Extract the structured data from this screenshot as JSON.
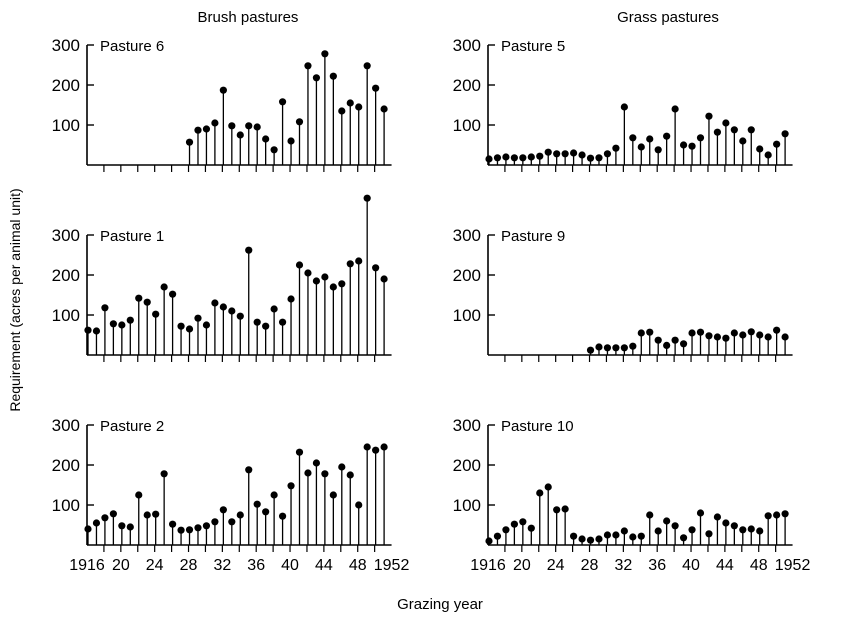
{
  "figure": {
    "col_titles": [
      "Brush pastures",
      "Grass pastures"
    ],
    "ylabel": "Requirement (acres per animal unit)",
    "xlabel": "Grazing year",
    "x_tick_labels": [
      "1916",
      "20",
      "24",
      "28",
      "32",
      "36",
      "40",
      "44",
      "48",
      "1952"
    ]
  },
  "chart_data": [
    {
      "type": "stem",
      "title": "Pasture 6",
      "group": "Brush pastures",
      "yticks": [
        100,
        200,
        300
      ],
      "ylim": [
        0,
        320
      ],
      "x": [
        1928,
        1929,
        1930,
        1931,
        1932,
        1933,
        1934,
        1935,
        1936,
        1937,
        1938,
        1939,
        1940,
        1941,
        1942,
        1943,
        1944,
        1945,
        1946,
        1947,
        1948,
        1949,
        1950,
        1951
      ],
      "values": [
        57,
        87,
        90,
        105,
        187,
        98,
        75,
        98,
        95,
        65,
        38,
        158,
        60,
        108,
        248,
        218,
        278,
        222,
        135,
        155,
        145,
        248,
        192,
        140
      ]
    },
    {
      "type": "stem",
      "title": "Pasture 1",
      "group": "Brush pastures",
      "yticks": [
        100,
        200,
        300
      ],
      "ylim": [
        0,
        400
      ],
      "x": [
        1916,
        1917,
        1918,
        1919,
        1920,
        1921,
        1922,
        1923,
        1924,
        1925,
        1926,
        1927,
        1928,
        1929,
        1930,
        1931,
        1932,
        1933,
        1934,
        1935,
        1936,
        1937,
        1938,
        1939,
        1940,
        1941,
        1942,
        1943,
        1944,
        1945,
        1946,
        1947,
        1948,
        1949,
        1950,
        1951
      ],
      "values": [
        62,
        60,
        118,
        78,
        75,
        87,
        142,
        132,
        102,
        170,
        152,
        72,
        65,
        92,
        75,
        130,
        120,
        110,
        97,
        262,
        82,
        72,
        115,
        82,
        140,
        225,
        205,
        185,
        195,
        170,
        178,
        228,
        235,
        392,
        218,
        190
      ]
    },
    {
      "type": "stem",
      "title": "Pasture 2",
      "group": "Brush pastures",
      "yticks": [
        100,
        200,
        300
      ],
      "ylim": [
        0,
        320
      ],
      "x": [
        1916,
        1917,
        1918,
        1919,
        1920,
        1921,
        1922,
        1923,
        1924,
        1925,
        1926,
        1927,
        1928,
        1929,
        1930,
        1931,
        1932,
        1933,
        1934,
        1935,
        1936,
        1937,
        1938,
        1939,
        1940,
        1941,
        1942,
        1943,
        1944,
        1945,
        1946,
        1947,
        1948,
        1949,
        1950,
        1951
      ],
      "values": [
        40,
        55,
        68,
        78,
        48,
        45,
        125,
        75,
        77,
        178,
        52,
        37,
        38,
        43,
        48,
        58,
        88,
        58,
        75,
        188,
        102,
        83,
        125,
        72,
        148,
        232,
        180,
        205,
        178,
        125,
        195,
        175,
        100,
        245,
        237,
        245
      ]
    },
    {
      "type": "stem",
      "title": "Pasture 5",
      "group": "Grass pastures",
      "yticks": [
        100,
        200,
        300
      ],
      "ylim": [
        0,
        320
      ],
      "x": [
        1916,
        1917,
        1918,
        1919,
        1920,
        1921,
        1922,
        1923,
        1924,
        1925,
        1926,
        1927,
        1928,
        1929,
        1930,
        1931,
        1932,
        1933,
        1934,
        1935,
        1936,
        1937,
        1938,
        1939,
        1940,
        1941,
        1942,
        1943,
        1944,
        1945,
        1946,
        1947,
        1948,
        1949,
        1950,
        1951
      ],
      "values": [
        15,
        18,
        20,
        18,
        18,
        20,
        22,
        32,
        28,
        28,
        30,
        25,
        17,
        18,
        28,
        42,
        145,
        68,
        45,
        65,
        38,
        72,
        140,
        50,
        47,
        68,
        122,
        82,
        105,
        88,
        60,
        88,
        40,
        25,
        52,
        78
      ]
    },
    {
      "type": "stem",
      "title": "Pasture 9",
      "group": "Grass pastures",
      "yticks": [
        100,
        200,
        300
      ],
      "ylim": [
        0,
        320
      ],
      "x": [
        1928,
        1929,
        1930,
        1931,
        1932,
        1933,
        1934,
        1935,
        1936,
        1937,
        1938,
        1939,
        1940,
        1941,
        1942,
        1943,
        1944,
        1945,
        1946,
        1947,
        1948,
        1949,
        1950,
        1951
      ],
      "values": [
        12,
        20,
        18,
        18,
        18,
        22,
        55,
        57,
        37,
        24,
        37,
        28,
        55,
        57,
        48,
        45,
        42,
        55,
        50,
        58,
        50,
        45,
        62,
        45
      ]
    },
    {
      "type": "stem",
      "title": "Pasture 10",
      "group": "Grass pastures",
      "yticks": [
        100,
        200,
        300
      ],
      "ylim": [
        0,
        320
      ],
      "x": [
        1916,
        1917,
        1918,
        1919,
        1920,
        1921,
        1922,
        1923,
        1924,
        1925,
        1926,
        1927,
        1928,
        1929,
        1930,
        1931,
        1932,
        1933,
        1934,
        1935,
        1936,
        1937,
        1938,
        1939,
        1940,
        1941,
        1942,
        1943,
        1944,
        1945,
        1946,
        1947,
        1948,
        1949,
        1950,
        1951
      ],
      "values": [
        10,
        22,
        38,
        52,
        58,
        42,
        130,
        145,
        88,
        90,
        22,
        15,
        12,
        15,
        25,
        25,
        35,
        20,
        22,
        75,
        35,
        60,
        48,
        18,
        38,
        80,
        28,
        70,
        55,
        48,
        38,
        40,
        35,
        73,
        75,
        78
      ]
    }
  ]
}
